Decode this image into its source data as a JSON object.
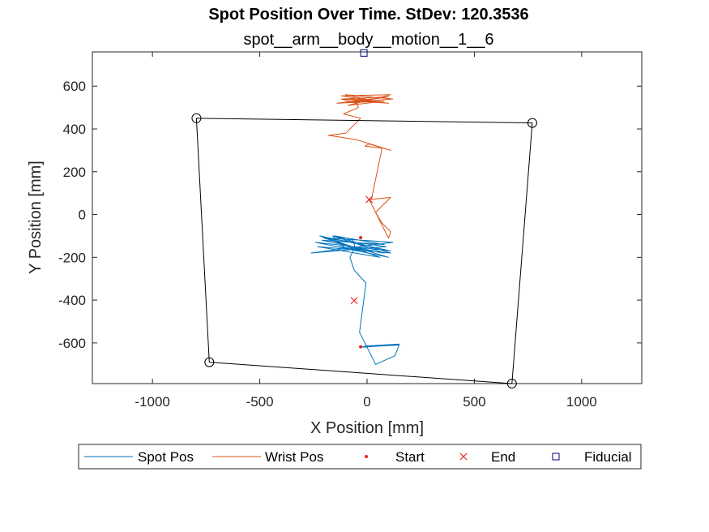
{
  "chart_data": {
    "type": "line",
    "title": "Spot Position Over Time. StDev: 120.3536",
    "subtitle": "spot__arm__body__motion__1__6",
    "xlabel": "X Position [mm]",
    "ylabel": "Y Position [mm]",
    "xlim": [
      -1280,
      1280
    ],
    "ylim": [
      -790,
      760
    ],
    "xticks": [
      -1000,
      -500,
      0,
      500,
      1000
    ],
    "xtick_labels": [
      "-1000",
      "-500",
      "0",
      "500",
      "1000"
    ],
    "yticks": [
      -600,
      -400,
      -200,
      0,
      200,
      400,
      600
    ],
    "ytick_labels": [
      "-600",
      "-400",
      "-200",
      "0",
      "200",
      "400",
      "600"
    ],
    "grid": false,
    "legend": {
      "placement": "bottom-outside",
      "orientation": "horizontal",
      "entries": [
        "Spot Pos",
        "Wrist Pos",
        "Start",
        "End",
        "Fiducial"
      ]
    },
    "colors": {
      "spot": "#0072bd",
      "wrist": "#d95319",
      "start": "#e8231f",
      "end": "#e8231f",
      "fiducial": "#000080",
      "boundary": "#000000"
    },
    "series": [
      {
        "name": "Spot Pos",
        "color": "#0072bd",
        "x": [
          -25,
          150,
          150,
          -10,
          -20,
          150,
          130,
          40,
          -35,
          -5,
          -60,
          -80,
          -60,
          -220,
          110,
          -240,
          100,
          -200,
          90,
          -260,
          120,
          -180,
          60,
          -230,
          110,
          -150,
          80,
          -210,
          30,
          -100,
          -160,
          -70,
          80,
          -130,
          -50,
          -70
        ],
        "y": [
          -618,
          -610,
          -605,
          -615,
          -620,
          -608,
          -660,
          -700,
          -550,
          -320,
          -260,
          -200,
          -160,
          -100,
          -170,
          -130,
          -200,
          -110,
          -150,
          -180,
          -130,
          -110,
          -200,
          -150,
          -180,
          -100,
          -140,
          -120,
          -170,
          -160,
          -100,
          -130,
          -180,
          -150,
          -170,
          -110
        ]
      },
      {
        "name": "Wrist Pos",
        "color": "#d95319",
        "x": [
          10,
          110,
          40,
          70,
          110,
          100,
          10,
          20,
          70,
          -10,
          10,
          110,
          -50,
          -180,
          -100,
          -30,
          -110,
          -40,
          -50,
          -120,
          100,
          -140,
          80,
          -90,
          110,
          -120,
          60,
          -100,
          120,
          -130,
          70,
          -60,
          100,
          -110,
          20
        ],
        "y": [
          70,
          80,
          10,
          -40,
          -80,
          -110,
          70,
          70,
          310,
          320,
          330,
          300,
          350,
          370,
          380,
          450,
          470,
          500,
          520,
          540,
          550,
          520,
          530,
          510,
          560,
          555,
          525,
          560,
          540,
          520,
          545,
          530,
          520,
          540,
          535
        ]
      },
      {
        "name": "Fiducial Boundary",
        "color": "#000000",
        "x": [
          -795,
          770,
          675,
          -735,
          -795
        ],
        "y": [
          450,
          428,
          -790,
          -690,
          450
        ]
      }
    ],
    "markers": {
      "start": [
        {
          "x": -30,
          "y": -618
        },
        {
          "x": -30,
          "y": -108
        }
      ],
      "end": [
        {
          "x": -60,
          "y": -402
        },
        {
          "x": 10,
          "y": 70
        }
      ],
      "fiducial": [
        {
          "x": -15,
          "y": 755
        }
      ],
      "corners": [
        {
          "x": -795,
          "y": 450
        },
        {
          "x": 770,
          "y": 428
        },
        {
          "x": 675,
          "y": -790
        },
        {
          "x": -735,
          "y": -690
        }
      ]
    }
  }
}
